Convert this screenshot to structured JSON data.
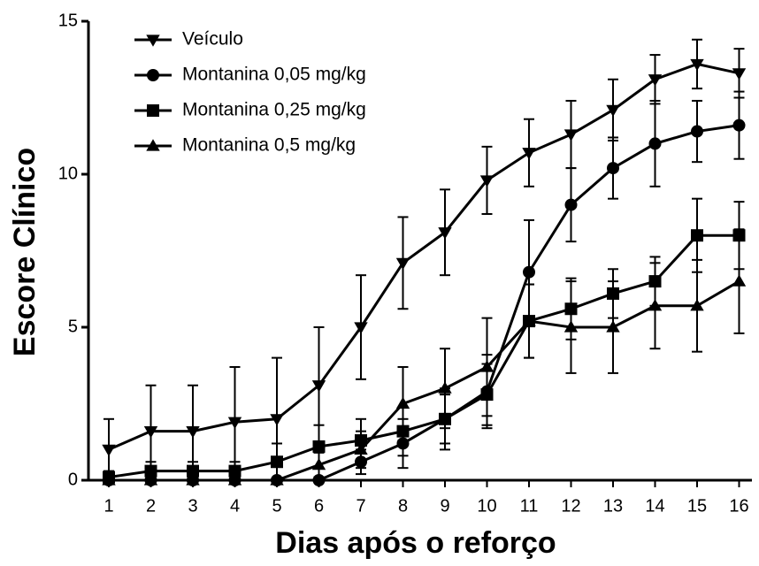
{
  "chart_data": {
    "type": "line",
    "xlabel": "Dias após o reforço",
    "ylabel": "Escore Clínico",
    "categories": [
      "1",
      "2",
      "3",
      "4",
      "5",
      "6",
      "7",
      "8",
      "9",
      "10",
      "11",
      "12",
      "13",
      "14",
      "15",
      "16"
    ],
    "ylim": [
      0,
      15
    ],
    "yticks": [
      0,
      5,
      10,
      15
    ],
    "legend": "upper-left",
    "series": [
      {
        "name": "Veículo",
        "color": "#000000",
        "marker": "triangle-down",
        "values": [
          1.0,
          1.6,
          1.6,
          1.9,
          2.0,
          3.1,
          5.0,
          7.1,
          8.1,
          9.8,
          10.7,
          11.3,
          12.1,
          13.1,
          13.6,
          13.3
        ],
        "errors": [
          1.0,
          1.5,
          1.5,
          1.8,
          2.0,
          1.9,
          1.7,
          1.5,
          1.4,
          1.1,
          1.1,
          1.1,
          1.0,
          0.8,
          0.8,
          0.8
        ]
      },
      {
        "name": "Montanina 0,05 mg/kg",
        "color": "#000000",
        "marker": "circle",
        "values": [
          0,
          0,
          0,
          0,
          0,
          0,
          0.6,
          1.2,
          2.0,
          2.9,
          6.8,
          9.0,
          10.2,
          11.0,
          11.4,
          11.6
        ],
        "errors": [
          0,
          0,
          0,
          0,
          0,
          0,
          0.4,
          0.8,
          1.0,
          1.2,
          1.7,
          1.2,
          1.0,
          1.4,
          1.0,
          1.1
        ]
      },
      {
        "name": "Montanina 0,25 mg/kg",
        "color": "#000000",
        "marker": "square",
        "values": [
          0.1,
          0.3,
          0.3,
          0.3,
          0.6,
          1.1,
          1.3,
          1.6,
          2.0,
          2.8,
          5.2,
          5.6,
          6.1,
          6.5,
          8.0,
          8.0
        ],
        "errors": [
          0.2,
          0.3,
          0.3,
          0.3,
          0.6,
          0.7,
          0.7,
          0.8,
          0.8,
          1.0,
          1.2,
          1.0,
          0.8,
          0.8,
          1.2,
          1.1
        ]
      },
      {
        "name": "Montanina 0,5 mg/kg",
        "color": "#000000",
        "marker": "triangle-up",
        "values": [
          0,
          0,
          0,
          0,
          0,
          0.5,
          1.0,
          2.5,
          3.0,
          3.7,
          5.2,
          5.0,
          5.0,
          5.7,
          5.7,
          6.5
        ],
        "errors": [
          0,
          0,
          0,
          0,
          0,
          0.4,
          0.6,
          1.2,
          1.3,
          1.6,
          1.2,
          1.5,
          1.5,
          1.4,
          1.5,
          1.7
        ]
      }
    ]
  }
}
